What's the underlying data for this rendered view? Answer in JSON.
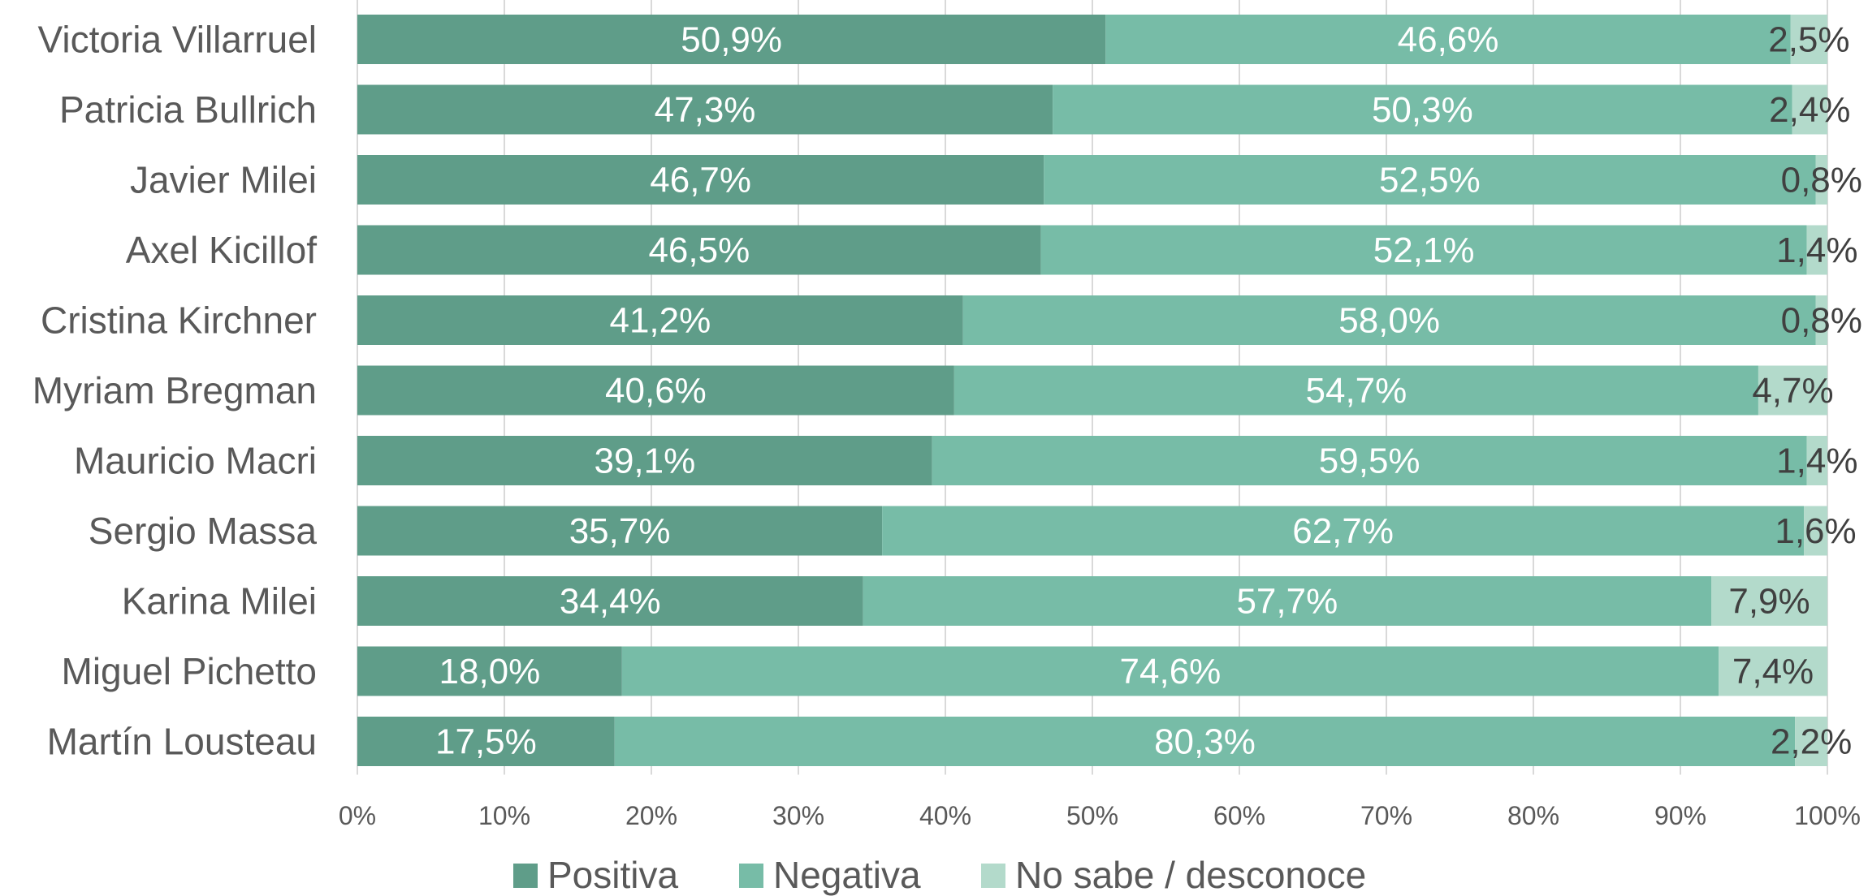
{
  "chart_data": {
    "type": "bar",
    "orientation": "horizontal",
    "stacked": true,
    "percent_stacked": true,
    "categories": [
      "Victoria Villarruel",
      "Patricia Bullrich",
      "Javier Milei",
      "Axel Kicillof",
      "Cristina Kirchner",
      "Myriam Bregman",
      "Mauricio Macri",
      "Sergio Massa",
      "Karina Milei",
      "Miguel Pichetto",
      "Martín Lousteau"
    ],
    "series": [
      {
        "name": "Positiva",
        "color": "#5f9d89",
        "values": [
          50.9,
          47.3,
          46.7,
          46.5,
          41.2,
          40.6,
          39.1,
          35.7,
          34.4,
          18.0,
          17.5
        ],
        "labels": [
          "50,9%",
          "47,3%",
          "46,7%",
          "46,5%",
          "41,2%",
          "40,6%",
          "39,1%",
          "35,7%",
          "34,4%",
          "18,0%",
          "17,5%"
        ]
      },
      {
        "name": "Negativa",
        "color": "#77bca7",
        "values": [
          46.6,
          50.3,
          52.5,
          52.1,
          58.0,
          54.7,
          59.5,
          62.7,
          57.7,
          74.6,
          80.3
        ],
        "labels": [
          "46,6%",
          "50,3%",
          "52,5%",
          "52,1%",
          "58,0%",
          "54,7%",
          "59,5%",
          "62,7%",
          "57,7%",
          "74,6%",
          "80,3%"
        ]
      },
      {
        "name": "No sabe / desconoce",
        "color": "#b3dacb",
        "values": [
          2.5,
          2.4,
          0.8,
          1.4,
          0.8,
          4.7,
          1.4,
          1.6,
          7.9,
          7.4,
          2.2
        ],
        "labels": [
          "2,5%",
          "2,4%",
          "0,8%",
          "1,4%",
          "0,8%",
          "4,7%",
          "1,4%",
          "1,6%",
          "7,9%",
          "7,4%",
          "2,2%"
        ]
      }
    ],
    "x_ticks": [
      "0%",
      "10%",
      "20%",
      "30%",
      "40%",
      "50%",
      "60%",
      "70%",
      "80%",
      "90%",
      "100%"
    ],
    "xlim": [
      0,
      100
    ],
    "grid": true,
    "legend_position": "bottom"
  }
}
